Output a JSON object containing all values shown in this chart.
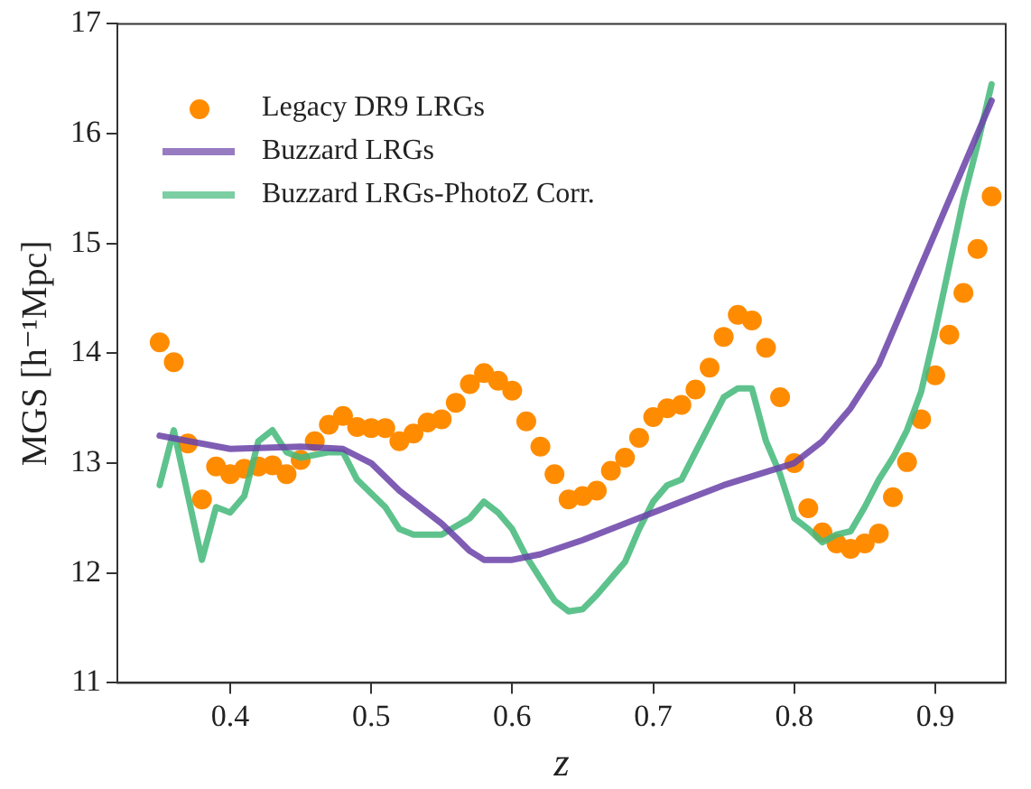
{
  "chart_data": {
    "type": "line",
    "xlabel": "z",
    "ylabel": "MGS [h⁻¹Mpc]",
    "xlim": [
      0.32,
      0.95
    ],
    "xticks": [
      0.4,
      0.5,
      0.6,
      0.7,
      0.8,
      0.9
    ],
    "ylim": [
      11,
      17
    ],
    "yticks": [
      11,
      12,
      13,
      14,
      15,
      16,
      17
    ],
    "grid": false,
    "legend": "top left",
    "series": [
      {
        "name": "Legacy DR9 LRGs",
        "type": "scatter",
        "marker": "circle",
        "color": "#ff8c00",
        "x": [
          0.35,
          0.36,
          0.37,
          0.38,
          0.39,
          0.4,
          0.41,
          0.42,
          0.43,
          0.44,
          0.45,
          0.46,
          0.47,
          0.48,
          0.49,
          0.5,
          0.51,
          0.52,
          0.53,
          0.54,
          0.55,
          0.56,
          0.57,
          0.58,
          0.59,
          0.6,
          0.61,
          0.62,
          0.63,
          0.64,
          0.65,
          0.66,
          0.67,
          0.68,
          0.69,
          0.7,
          0.71,
          0.72,
          0.73,
          0.74,
          0.75,
          0.76,
          0.77,
          0.78,
          0.79,
          0.8,
          0.81,
          0.82,
          0.83,
          0.84,
          0.85,
          0.86,
          0.87,
          0.88,
          0.89,
          0.9,
          0.91,
          0.92,
          0.93,
          0.94
        ],
        "values": [
          14.1,
          13.92,
          13.18,
          12.67,
          12.97,
          12.9,
          12.95,
          12.97,
          12.98,
          12.9,
          13.03,
          13.2,
          13.35,
          13.43,
          13.33,
          13.32,
          13.32,
          13.2,
          13.27,
          13.37,
          13.4,
          13.55,
          13.72,
          13.82,
          13.75,
          13.66,
          13.38,
          13.15,
          12.9,
          12.67,
          12.7,
          12.75,
          12.93,
          13.05,
          13.23,
          13.42,
          13.5,
          13.53,
          13.67,
          13.87,
          14.15,
          14.35,
          14.3,
          14.05,
          13.6,
          13.0,
          12.59,
          12.37,
          12.27,
          12.22,
          12.27,
          12.36,
          12.69,
          13.01,
          13.4,
          13.8,
          14.17,
          14.55,
          14.95,
          15.43
        ]
      },
      {
        "name": "Buzzard LRGs",
        "type": "line",
        "marker": "none",
        "color": "#6b44a8",
        "x": [
          0.35,
          0.4,
          0.45,
          0.48,
          0.5,
          0.52,
          0.55,
          0.57,
          0.58,
          0.6,
          0.62,
          0.65,
          0.7,
          0.75,
          0.8,
          0.82,
          0.84,
          0.86,
          0.88,
          0.9,
          0.92,
          0.94
        ],
        "values": [
          13.25,
          13.13,
          13.15,
          13.13,
          13.0,
          12.75,
          12.45,
          12.2,
          12.12,
          12.12,
          12.17,
          12.3,
          12.55,
          12.8,
          13.0,
          13.2,
          13.5,
          13.9,
          14.5,
          15.1,
          15.7,
          16.3
        ]
      },
      {
        "name": "Buzzard LRGs-PhotoZ Corr.",
        "type": "line",
        "marker": "none",
        "color": "#45b97c",
        "x": [
          0.35,
          0.36,
          0.38,
          0.39,
          0.4,
          0.41,
          0.42,
          0.43,
          0.44,
          0.45,
          0.47,
          0.48,
          0.49,
          0.51,
          0.52,
          0.53,
          0.55,
          0.57,
          0.58,
          0.59,
          0.6,
          0.61,
          0.62,
          0.63,
          0.64,
          0.65,
          0.66,
          0.68,
          0.69,
          0.7,
          0.71,
          0.72,
          0.73,
          0.74,
          0.75,
          0.76,
          0.77,
          0.78,
          0.79,
          0.8,
          0.81,
          0.82,
          0.83,
          0.84,
          0.85,
          0.86,
          0.87,
          0.88,
          0.89,
          0.9,
          0.91,
          0.92,
          0.93,
          0.94
        ],
        "values": [
          12.8,
          13.3,
          12.12,
          12.6,
          12.55,
          12.7,
          13.2,
          13.3,
          13.1,
          13.05,
          13.1,
          13.1,
          12.85,
          12.6,
          12.4,
          12.35,
          12.35,
          12.5,
          12.65,
          12.55,
          12.4,
          12.15,
          11.95,
          11.75,
          11.65,
          11.67,
          11.8,
          12.1,
          12.4,
          12.65,
          12.8,
          12.85,
          13.1,
          13.35,
          13.6,
          13.68,
          13.68,
          13.2,
          12.9,
          12.5,
          12.4,
          12.28,
          12.35,
          12.38,
          12.6,
          12.85,
          13.05,
          13.3,
          13.65,
          14.2,
          14.8,
          15.4,
          15.9,
          16.45
        ]
      }
    ]
  }
}
